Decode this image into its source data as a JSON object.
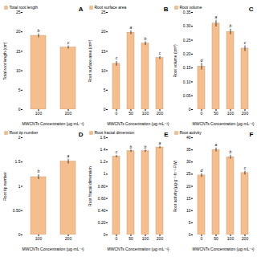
{
  "chart_data": [
    {
      "type": "bar",
      "title": "A",
      "xlabel": "MWCNTs Concentration (μg·mL⁻¹)",
      "ylabel": "Total root length (cm)",
      "categories": [
        "100",
        "200"
      ],
      "series": [
        {
          "name": "Total root length",
          "color": "#F5BE8E",
          "values": [
            19.0,
            16.0
          ],
          "errors": [
            0.5,
            0.4
          ],
          "annotations": [
            "b",
            "c"
          ]
        }
      ],
      "ylim": [
        0,
        25
      ],
      "yticks": [
        0,
        5,
        10,
        15,
        20,
        25
      ],
      "legend": "upper left"
    },
    {
      "type": "bar",
      "title": "B",
      "xlabel": "MWCNTs Concentration (μg·mL⁻¹)",
      "ylabel": "Root surface area (cm²)",
      "categories": [
        "0",
        "50",
        "100",
        "200"
      ],
      "series": [
        {
          "name": "Root surface area",
          "color": "#F5BE8E",
          "values": [
            11.8,
            19.8,
            17.0,
            13.3
          ],
          "errors": [
            0.6,
            0.5,
            0.5,
            0.4
          ],
          "annotations": [
            "c",
            "a",
            "b",
            "c"
          ]
        }
      ],
      "ylim": [
        0,
        25
      ],
      "yticks": [
        0,
        5,
        10,
        15,
        20,
        25
      ],
      "legend": "upper left"
    },
    {
      "type": "bar",
      "title": "C",
      "xlabel": "MWCNTs Concentration (μg·mL⁻¹)",
      "ylabel": "Root volume (cm³)",
      "categories": [
        "0",
        "50",
        "100",
        "200"
      ],
      "series": [
        {
          "name": "Root volume",
          "color": "#F5BE8E",
          "values": [
            0.155,
            0.31,
            0.28,
            0.22
          ],
          "errors": [
            0.012,
            0.012,
            0.01,
            0.01
          ],
          "annotations": [
            "d",
            "a",
            "b",
            "c"
          ]
        }
      ],
      "ylim": [
        0,
        0.35
      ],
      "yticks": [
        0,
        0.05,
        {
          "value": 0.1,
          "label": "0.10"
        },
        0.15,
        {
          "value": 0.2,
          "label": "0.20"
        },
        0.25,
        {
          "value": 0.3,
          "label": "0.30"
        },
        0.35
      ],
      "legend": "upper left"
    },
    {
      "type": "bar",
      "title": "D",
      "xlabel": "MWCNTs Concentration (μg·mL⁻¹)",
      "ylabel": "Root tip number",
      "categories": [
        "100",
        "200"
      ],
      "series": [
        {
          "name": "Root tip number",
          "color": "#F5BE8E",
          "values": [
            1.19,
            1.51
          ],
          "errors": [
            0.05,
            0.05
          ],
          "annotations": [
            "b",
            "a"
          ]
        }
      ],
      "ylim": [
        0,
        2
      ],
      "yticks": [
        0,
        {
          "value": 0.5,
          "label": "0.50"
        },
        1,
        1.5,
        2
      ],
      "legend": "upper left"
    },
    {
      "type": "bar",
      "title": "E",
      "xlabel": "MWCNTs Concentration (μg·mL⁻¹)",
      "ylabel": "Root fractal dimension",
      "categories": [
        "0",
        "50",
        "100",
        "200"
      ],
      "series": [
        {
          "name": "Root fractal dimension",
          "color": "#F5BE8E",
          "values": [
            1.29,
            1.38,
            1.38,
            1.44
          ],
          "errors": [
            0.02,
            0.02,
            0.02,
            0.02
          ],
          "annotations": [
            "c",
            "b",
            "b",
            "a"
          ]
        }
      ],
      "ylim": [
        0,
        1.6
      ],
      "yticks": [
        0,
        {
          "value": 0.2,
          "label": "0.20"
        },
        {
          "value": 0.4,
          "label": "0.40"
        },
        {
          "value": 0.6,
          "label": "0.60"
        },
        {
          "value": 0.8,
          "label": "0.80"
        },
        1,
        1.2,
        1.4,
        1.6
      ],
      "legend": "upper left"
    },
    {
      "type": "bar",
      "title": "F",
      "xlabel": "MWCNTs Concentration (μg·mL⁻¹)",
      "ylabel": "Root activity (μg·g⁻¹·h⁻¹·FW)",
      "categories": [
        "0",
        "50",
        "100",
        "200"
      ],
      "series": [
        {
          "name": "Root activity",
          "color": "#F5BE8E",
          "values": [
            24.5,
            35.0,
            32.0,
            25.5
          ],
          "errors": [
            0.8,
            0.8,
            0.8,
            0.8
          ],
          "annotations": [
            "d",
            "a",
            "b",
            "c"
          ]
        }
      ],
      "ylim": [
        0,
        40
      ],
      "yticks": [
        0,
        5,
        10,
        15,
        20,
        25,
        30,
        35,
        40
      ],
      "legend": "upper left"
    }
  ]
}
